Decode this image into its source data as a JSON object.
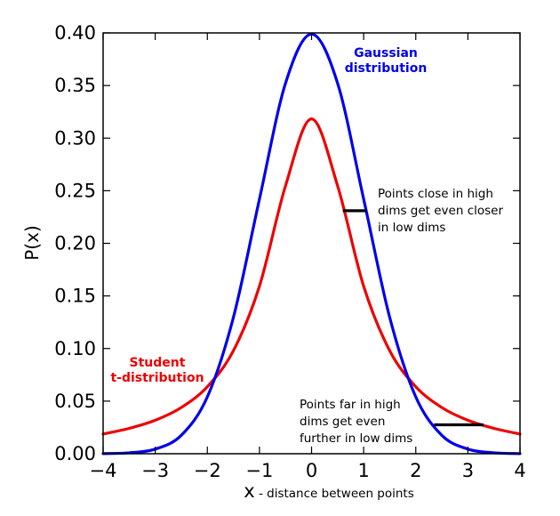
{
  "chart_data": {
    "type": "line",
    "title": "",
    "xlabel": "x",
    "xlabel_suffix": " - distance between points",
    "ylabel": "P(x)",
    "xlim": [
      -4,
      4
    ],
    "ylim": [
      0,
      0.4
    ],
    "x_ticks": [
      -4,
      -3,
      -2,
      -1,
      0,
      1,
      2,
      3,
      4
    ],
    "x_tick_labels": [
      "−4",
      "−3",
      "−2",
      "−1",
      "0",
      "1",
      "2",
      "3",
      "4"
    ],
    "y_ticks": [
      0.0,
      0.05,
      0.1,
      0.15,
      0.2,
      0.25,
      0.3,
      0.35,
      0.4
    ],
    "y_tick_labels": [
      "0.00",
      "0.05",
      "0.10",
      "0.15",
      "0.20",
      "0.25",
      "0.30",
      "0.35",
      "0.40"
    ],
    "grid": false,
    "series": [
      {
        "name": "Gaussian distribution",
        "label_lines": [
          "Gaussian",
          "distribution"
        ],
        "color": "#0000ee",
        "x": [
          -4,
          -3.5,
          -3,
          -2.5,
          -2,
          -1.5,
          -1,
          -0.5,
          0,
          0.5,
          1,
          1.5,
          2,
          2.5,
          3,
          3.5,
          4
        ],
        "y": [
          0.0001,
          0.0009,
          0.0044,
          0.0175,
          0.054,
          0.1295,
          0.242,
          0.3521,
          0.3989,
          0.3521,
          0.242,
          0.1295,
          0.054,
          0.0175,
          0.0044,
          0.0009,
          0.0001
        ]
      },
      {
        "name": "Student t-distribution",
        "label_lines": [
          "Student",
          "t-distribution"
        ],
        "color": "#ee0000",
        "x": [
          -4,
          -3.5,
          -3,
          -2.5,
          -2,
          -1.5,
          -1,
          -0.5,
          0,
          0.5,
          1,
          1.5,
          2,
          2.5,
          3,
          3.5,
          4
        ],
        "y": [
          0.0187,
          0.0241,
          0.0318,
          0.0439,
          0.0637,
          0.0979,
          0.1592,
          0.2546,
          0.3183,
          0.2546,
          0.1592,
          0.0979,
          0.0637,
          0.0439,
          0.0318,
          0.0241,
          0.0187
        ]
      }
    ],
    "annotations": [
      {
        "lines": [
          "Points close in high",
          "dims get even closer",
          "in low dims"
        ],
        "segment": {
          "x1": 0.6,
          "x2": 1.05,
          "y": 0.231
        }
      },
      {
        "lines": [
          "Points far in high",
          "dims   get    even",
          "further in low dims"
        ],
        "segment": {
          "x1": 2.35,
          "x2": 3.3,
          "y": 0.0275
        }
      }
    ]
  }
}
